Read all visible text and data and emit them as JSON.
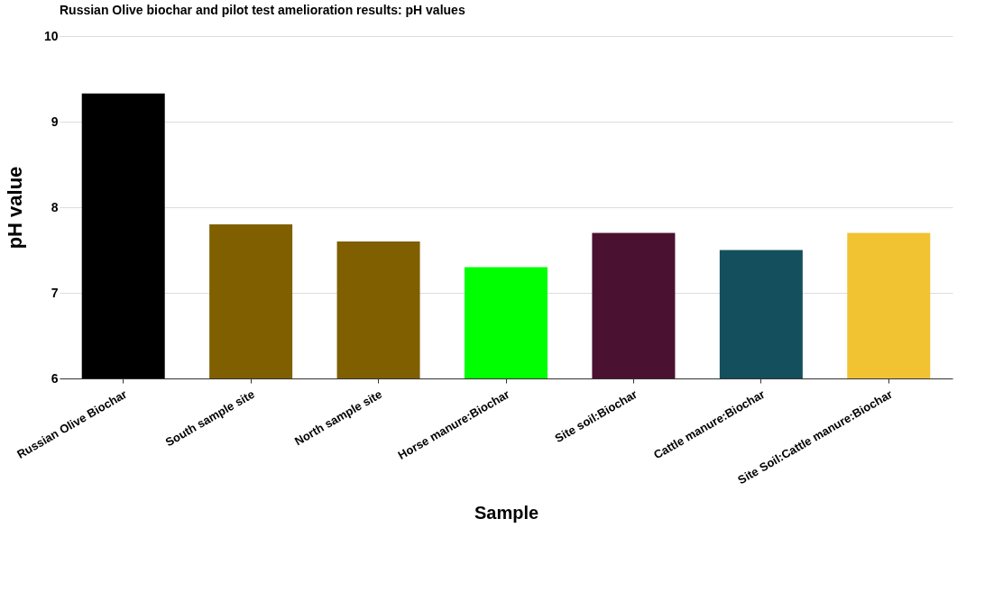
{
  "chart_data": {
    "type": "bar",
    "title": "Russian Olive biochar and pilot test amelioration results: pH values",
    "xlabel": "Sample",
    "ylabel": "pH value",
    "categories": [
      "Russian Olive Biochar",
      "South sample site",
      "North sample site",
      "Horse manure:Biochar",
      "Site soil:Biochar",
      "Cattle manure:Biochar",
      "Site Soil:Cattle manure:Biochar"
    ],
    "values": [
      9.33,
      7.8,
      7.6,
      7.3,
      7.7,
      7.5,
      7.7
    ],
    "colors": [
      "#000000",
      "#7f5f00",
      "#7f5f00",
      "#00ff00",
      "#4a1130",
      "#134f5c",
      "#f1c232"
    ],
    "ylim": [
      6,
      10
    ],
    "yticks": [
      6,
      7,
      8,
      9,
      10
    ],
    "grid": "y",
    "legend": false
  }
}
